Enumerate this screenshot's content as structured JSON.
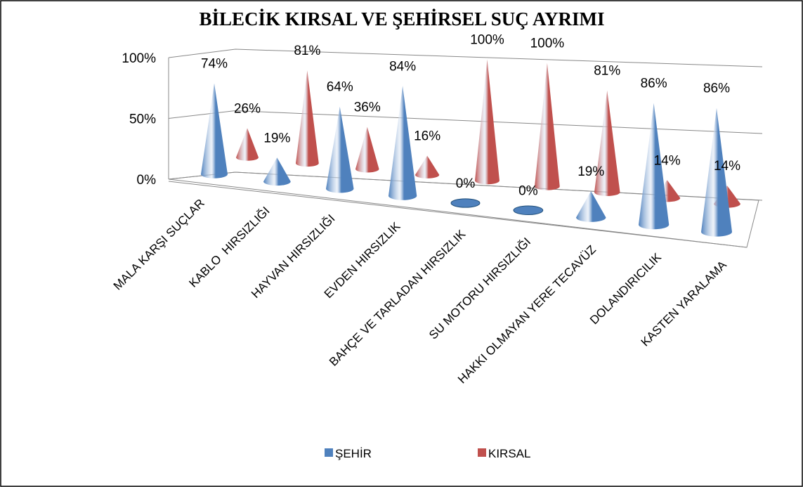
{
  "chart_data": {
    "type": "cone3d",
    "title": "BİLECİK KIRSAL VE ŞEHİRSEL SUÇ AYRIMI",
    "categories": [
      "MALA KARŞI SUÇLAR",
      "KABLO  HIRSIZLIĞI",
      "HAYVAN HIRSIZLIĞI",
      "EVDEN HIRSIZLIK",
      "BAHÇE VE TARLADAN HIRSIZLIK",
      "SU MOTORU HIRSIZLIĞI",
      "HAKKI OLMAYAN YERE TECAVÜZ",
      "DOLANDIRICILIK",
      "KASTEN YARALAMA"
    ],
    "series": [
      {
        "name": "ŞEHİR",
        "color": "#4f81bd",
        "values": [
          74,
          19,
          64,
          84,
          0,
          0,
          19,
          86,
          86
        ],
        "value_labels": [
          "74%",
          "19%",
          "64%",
          "84%",
          "0%",
          "0%",
          "19%",
          "86%",
          "86%"
        ]
      },
      {
        "name": "KIRSAL",
        "color": "#c0504d",
        "values": [
          26,
          81,
          36,
          16,
          100,
          100,
          81,
          14,
          14
        ],
        "value_labels": [
          "26%",
          "81%",
          "36%",
          "16%",
          "100%",
          "100%",
          "81%",
          "14%",
          "14%"
        ]
      }
    ],
    "ylim": [
      0,
      100
    ],
    "yticks": [
      {
        "value": 0,
        "label": "0%"
      },
      {
        "value": 50,
        "label": "50%"
      },
      {
        "value": 100,
        "label": "100%"
      }
    ],
    "grid": true,
    "legend": "bottom"
  }
}
